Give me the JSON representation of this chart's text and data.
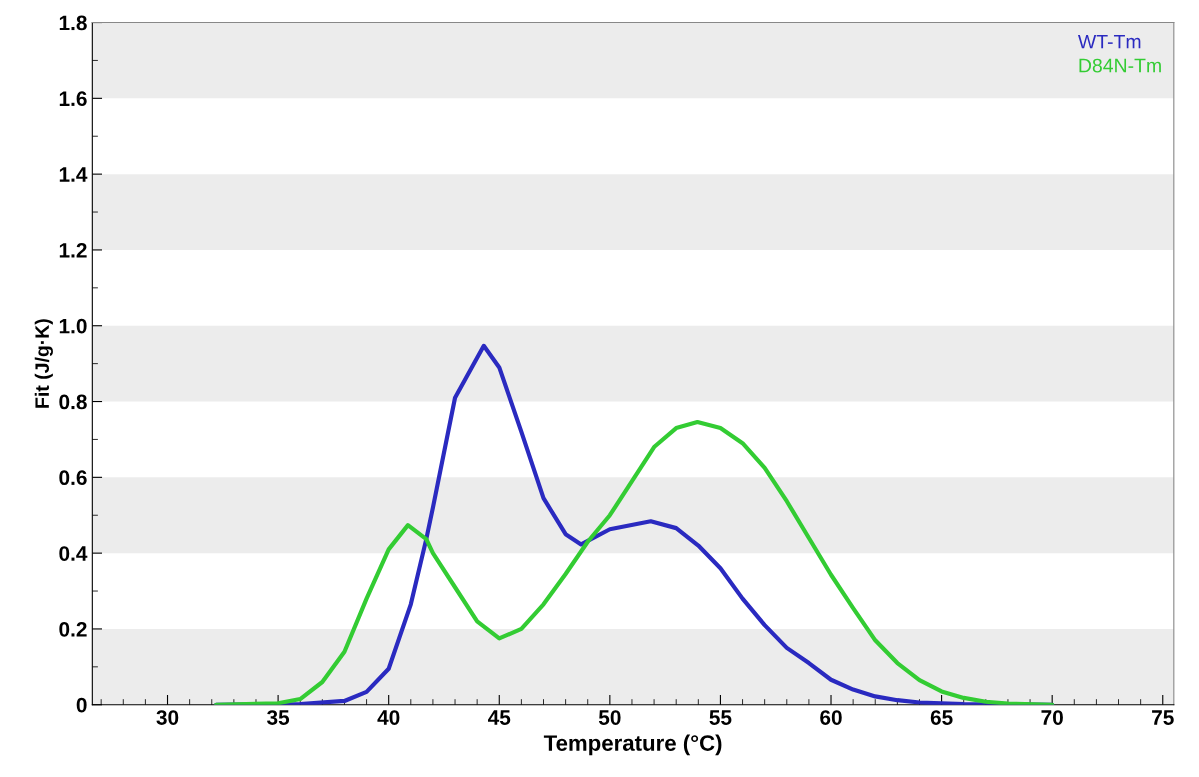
{
  "chart_data": {
    "type": "line",
    "xlabel": "Temperature (°C)",
    "ylabel": "Fit (J/g·K)",
    "xlim": [
      26.6,
      75.5
    ],
    "xticks": [
      30,
      35,
      40,
      45,
      50,
      55,
      60,
      65,
      70,
      75
    ],
    "ylim": [
      0,
      1.8
    ],
    "yticks": [
      {
        "value": 0,
        "label": "0"
      },
      {
        "value": 0.2,
        "label": "0.2"
      },
      {
        "value": 0.4,
        "label": "0.4"
      },
      {
        "value": 0.6,
        "label": "0.6"
      },
      {
        "value": 0.8,
        "label": "0.8"
      },
      {
        "value": 1.0,
        "label": "1.0"
      },
      {
        "value": 1.2,
        "label": "1.2"
      },
      {
        "value": 1.4,
        "label": "1.4"
      },
      {
        "value": 1.6,
        "label": "1.6"
      },
      {
        "value": 1.8,
        "label": "1.8"
      }
    ],
    "bands": [
      {
        "axis": "y",
        "from": 0,
        "to": 0.2,
        "color": "#ececec"
      },
      {
        "axis": "y",
        "from": 0.4,
        "to": 0.6,
        "color": "#ececec"
      },
      {
        "axis": "y",
        "from": 0.8,
        "to": 1.0,
        "color": "#ececec"
      },
      {
        "axis": "y",
        "from": 1.2,
        "to": 1.4,
        "color": "#ececec"
      },
      {
        "axis": "y",
        "from": 1.6,
        "to": 1.8,
        "color": "#ececec"
      }
    ],
    "legend": "top right",
    "grid": false,
    "marker": "none",
    "line_style": "solid",
    "series": [
      {
        "name": "WT-Tm",
        "color": "#2a2ac0",
        "x": [
          32.2,
          36,
          38,
          39,
          40,
          41,
          41.7,
          42,
          43,
          44.3,
          45,
          46,
          47,
          48,
          48.7,
          50,
          51.85,
          53,
          54,
          55,
          56,
          57,
          58,
          59,
          60,
          61,
          62,
          63,
          64,
          66,
          70
        ],
        "values": [
          0,
          0.002,
          0.01,
          0.034,
          0.095,
          0.265,
          0.437,
          0.52,
          0.81,
          0.947,
          0.89,
          0.72,
          0.545,
          0.45,
          0.423,
          0.463,
          0.484,
          0.466,
          0.42,
          0.36,
          0.28,
          0.21,
          0.15,
          0.11,
          0.066,
          0.04,
          0.022,
          0.012,
          0.006,
          0.002,
          0
        ]
      },
      {
        "name": "D84N-Tm",
        "color": "#33cc33",
        "x": [
          32.2,
          35,
          36,
          37,
          38,
          39,
          40,
          40.87,
          41.7,
          42,
          43,
          44,
          45,
          46,
          47,
          48,
          49,
          50,
          52,
          53,
          53.96,
          55,
          56,
          57,
          58,
          59,
          60,
          61,
          62,
          63,
          64,
          65,
          66,
          67,
          68,
          70
        ],
        "values": [
          0,
          0.004,
          0.015,
          0.06,
          0.14,
          0.28,
          0.41,
          0.474,
          0.437,
          0.4,
          0.31,
          0.22,
          0.175,
          0.2,
          0.265,
          0.345,
          0.43,
          0.5,
          0.68,
          0.73,
          0.746,
          0.73,
          0.69,
          0.625,
          0.537,
          0.44,
          0.343,
          0.255,
          0.17,
          0.11,
          0.065,
          0.035,
          0.018,
          0.008,
          0.003,
          0
        ]
      }
    ]
  }
}
